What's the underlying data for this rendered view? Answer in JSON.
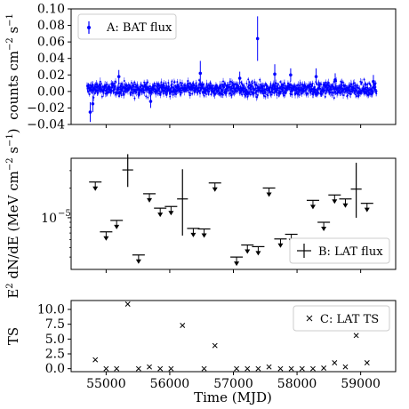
{
  "chart_data": [
    {
      "type": "scatter",
      "panel": "A",
      "ylabel": "counts cm^-2 s^-1",
      "ylabel_parts": {
        "main": "counts cm",
        "exp1": "−2",
        "mid": " s",
        "exp2": "−1"
      },
      "xlim": [
        54450,
        59550
      ],
      "ylim": [
        -0.04,
        0.1
      ],
      "yticks": [
        "−0.04",
        "−0.02",
        "0.00",
        "0.02",
        "0.04",
        "0.06",
        "0.08",
        "0.10"
      ],
      "ytick_values": [
        -0.04,
        -0.02,
        0.0,
        0.02,
        0.04,
        0.06,
        0.08,
        0.1
      ],
      "color": "#0000ff",
      "series": [
        {
          "name": "A: BAT flux"
        }
      ],
      "time_range": [
        54700,
        59250
      ],
      "baseline": 0.003,
      "scatter": 0.004,
      "outliers": [
        {
          "x": 54750,
          "y": -0.025,
          "err": 0.012
        },
        {
          "x": 54790,
          "y": -0.015,
          "err": 0.01
        },
        {
          "x": 55200,
          "y": 0.018,
          "err": 0.008
        },
        {
          "x": 55700,
          "y": -0.012,
          "err": 0.008
        },
        {
          "x": 56480,
          "y": 0.022,
          "err": 0.015
        },
        {
          "x": 57100,
          "y": 0.016,
          "err": 0.008
        },
        {
          "x": 57380,
          "y": 0.064,
          "err": 0.027
        },
        {
          "x": 57650,
          "y": 0.021,
          "err": 0.012
        },
        {
          "x": 57900,
          "y": 0.02,
          "err": 0.008
        },
        {
          "x": 58300,
          "y": 0.018,
          "err": 0.01
        },
        {
          "x": 58600,
          "y": 0.014,
          "err": 0.008
        },
        {
          "x": 59200,
          "y": 0.012,
          "err": 0.008
        }
      ]
    },
    {
      "type": "scatter",
      "panel": "B",
      "ylabel": "E^2 dN/dE (MeV cm^-2 s^-1)",
      "ylabel_parts": {
        "a": "E",
        "a_exp": "2",
        "b": " dN/dE (MeV cm",
        "b_exp": "−2",
        "c": " s",
        "c_exp": "−1",
        "d": ")"
      },
      "yscale": "log",
      "yticks": [
        "10"
      ],
      "ytick_exponent": "−5",
      "ytick_values": [
        1e-05
      ],
      "ylim": [
        3e-06,
        4e-05
      ],
      "xlim": [
        54450,
        59550
      ],
      "color": "#000000",
      "series": [
        {
          "name": "B: LAT flux"
        }
      ],
      "upper_limits": [
        {
          "x": 54830,
          "y": 2.3e-05
        },
        {
          "x": 55000,
          "y": 7.2e-06
        },
        {
          "x": 55165,
          "y": 9.4e-06
        },
        {
          "x": 55510,
          "y": 4.2e-06
        },
        {
          "x": 55680,
          "y": 1.75e-05
        },
        {
          "x": 55850,
          "y": 1.25e-05
        },
        {
          "x": 56020,
          "y": 1.3e-05
        },
        {
          "x": 56370,
          "y": 7.8e-06
        },
        {
          "x": 56540,
          "y": 7.7e-06
        },
        {
          "x": 56710,
          "y": 2.25e-05
        },
        {
          "x": 57050,
          "y": 4e-06
        },
        {
          "x": 57220,
          "y": 5.3e-06
        },
        {
          "x": 57390,
          "y": 5.1e-06
        },
        {
          "x": 57560,
          "y": 2e-05
        },
        {
          "x": 57740,
          "y": 6.1e-06
        },
        {
          "x": 57910,
          "y": 6.8e-06
        },
        {
          "x": 58250,
          "y": 1.5e-05
        },
        {
          "x": 58420,
          "y": 9e-06
        },
        {
          "x": 58590,
          "y": 1.7e-05
        },
        {
          "x": 58760,
          "y": 1.55e-05
        },
        {
          "x": 59100,
          "y": 1.4e-05
        }
      ],
      "detections": [
        {
          "x": 55340,
          "y": 3.05e-05,
          "ylo": 2.05e-05,
          "yhi": 4.4e-05,
          "xerr": 85
        },
        {
          "x": 56200,
          "y": 1.55e-05,
          "ylo": 6.6e-06,
          "yhi": 3.1e-05,
          "xerr": 85
        },
        {
          "x": 58930,
          "y": 1.95e-05,
          "ylo": 1e-05,
          "yhi": 3.6e-05,
          "xerr": 85
        }
      ]
    },
    {
      "type": "scatter",
      "panel": "C",
      "ylabel": "TS",
      "xlabel": "Time (MJD)",
      "xlim": [
        54450,
        59550
      ],
      "ylim": [
        -0.5,
        11.5
      ],
      "yticks": [
        "0.0",
        "2.5",
        "5.0",
        "7.5",
        "10.0"
      ],
      "ytick_values": [
        0,
        2.5,
        5,
        7.5,
        10
      ],
      "xticks": [
        "55000",
        "56000",
        "57000",
        "58000",
        "59000"
      ],
      "xtick_values": [
        55000,
        56000,
        57000,
        58000,
        59000
      ],
      "color": "#000000",
      "series": [
        {
          "name": "C: LAT TS"
        }
      ],
      "points": [
        {
          "x": 54830,
          "y": 1.5
        },
        {
          "x": 55000,
          "y": 0.0
        },
        {
          "x": 55165,
          "y": 0.0
        },
        {
          "x": 55340,
          "y": 10.9
        },
        {
          "x": 55510,
          "y": 0.0
        },
        {
          "x": 55680,
          "y": 0.3
        },
        {
          "x": 55850,
          "y": 0.0
        },
        {
          "x": 56020,
          "y": 0.0
        },
        {
          "x": 56200,
          "y": 7.3
        },
        {
          "x": 56540,
          "y": 0.0
        },
        {
          "x": 56710,
          "y": 3.9
        },
        {
          "x": 57050,
          "y": 0.0
        },
        {
          "x": 57220,
          "y": 0.0
        },
        {
          "x": 57390,
          "y": 0.0
        },
        {
          "x": 57560,
          "y": 0.3
        },
        {
          "x": 57740,
          "y": 0.0
        },
        {
          "x": 57910,
          "y": 0.0
        },
        {
          "x": 58080,
          "y": 0.0
        },
        {
          "x": 58250,
          "y": 0.0
        },
        {
          "x": 58420,
          "y": 0.1
        },
        {
          "x": 58590,
          "y": 1.0
        },
        {
          "x": 58760,
          "y": 0.3
        },
        {
          "x": 58930,
          "y": 5.6
        },
        {
          "x": 59100,
          "y": 1.0
        }
      ]
    }
  ]
}
